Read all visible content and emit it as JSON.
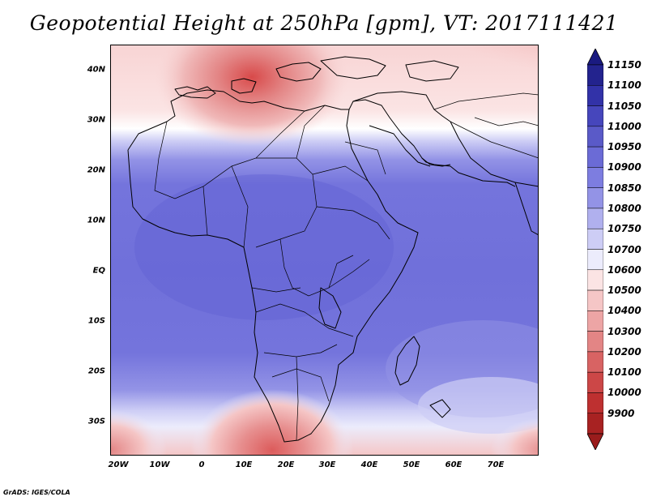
{
  "title": "Geopotential Height at 250hPa [gpm], VT: 2017111421",
  "footer": "GrADS: IGES/COLA",
  "map": {
    "projection": "latlon",
    "lon_range": [
      -22,
      80
    ],
    "lat_range": [
      -37,
      45
    ],
    "lat_ticks": [
      {
        "value": 40,
        "label": "40N"
      },
      {
        "value": 30,
        "label": "30N"
      },
      {
        "value": 20,
        "label": "20N"
      },
      {
        "value": 10,
        "label": "10N"
      },
      {
        "value": 0,
        "label": "EQ"
      },
      {
        "value": -10,
        "label": "10S"
      },
      {
        "value": -20,
        "label": "20S"
      },
      {
        "value": -30,
        "label": "30S"
      }
    ],
    "lon_ticks": [
      {
        "value": -20,
        "label": "20W"
      },
      {
        "value": -10,
        "label": "10W"
      },
      {
        "value": 0,
        "label": "0"
      },
      {
        "value": 10,
        "label": "10E"
      },
      {
        "value": 20,
        "label": "20E"
      },
      {
        "value": 30,
        "label": "30E"
      },
      {
        "value": 40,
        "label": "40E"
      },
      {
        "value": 50,
        "label": "50E"
      },
      {
        "value": 60,
        "label": "60E"
      },
      {
        "value": 70,
        "label": "70E"
      }
    ]
  },
  "colorbar": {
    "levels": [
      "11150",
      "11100",
      "11050",
      "11000",
      "10950",
      "10900",
      "10850",
      "10800",
      "10750",
      "10700",
      "10600",
      "10500",
      "10400",
      "10300",
      "10200",
      "10100",
      "10000",
      "9900"
    ],
    "colors": [
      "#23238e",
      "#3232a8",
      "#4646bc",
      "#5a5ac8",
      "#6b6bd6",
      "#7d7de0",
      "#9393e6",
      "#b0b0ee",
      "#cdcdf5",
      "#ececfc",
      "#fbe4e4",
      "#f5c6c6",
      "#eda5a5",
      "#e38585",
      "#d86363",
      "#cc4747",
      "#be3030",
      "#a82222"
    ],
    "top_arrow_color": "#1a1a80",
    "bottom_arrow_color": "#9a1c1c"
  }
}
